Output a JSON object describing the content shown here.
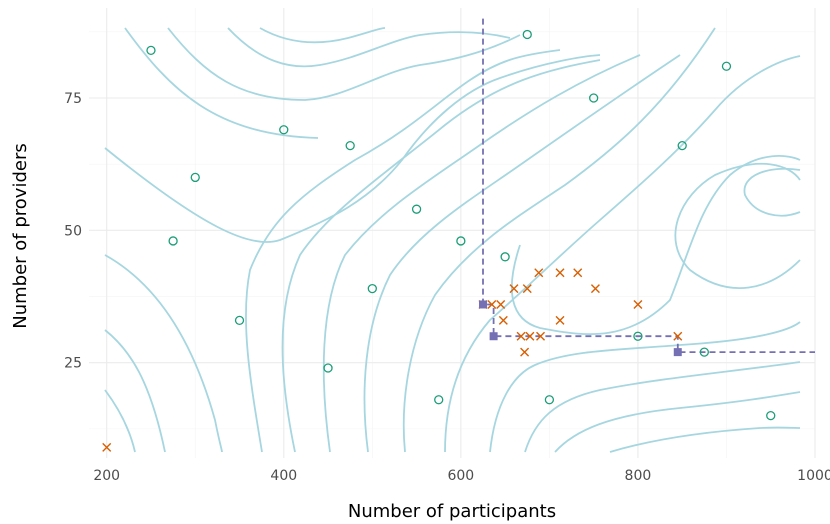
{
  "chart_data": {
    "type": "scatter",
    "title": "",
    "xlabel": "Number of participants",
    "ylabel": "Number of providers",
    "xlim": [
      180,
      1000
    ],
    "ylim": [
      7,
      92
    ],
    "x_ticks": [
      200,
      400,
      600,
      800,
      1000
    ],
    "y_ticks": [
      25,
      50,
      75
    ],
    "grid": true,
    "colors": {
      "circles": "#1b9e77",
      "crosses": "#d95f02",
      "frontier": "#7570b3",
      "contours": "#a6d6e0"
    },
    "series": [
      {
        "marker": "circle",
        "points": [
          [
            250,
            84
          ],
          [
            300,
            60
          ],
          [
            275,
            48
          ],
          [
            350,
            33
          ],
          [
            400,
            69
          ],
          [
            450,
            24
          ],
          [
            475,
            66
          ],
          [
            500,
            39
          ],
          [
            550,
            54
          ],
          [
            575,
            18
          ],
          [
            600,
            48
          ],
          [
            650,
            45
          ],
          [
            675,
            87
          ],
          [
            700,
            18
          ],
          [
            750,
            75
          ],
          [
            800,
            30
          ],
          [
            850,
            66
          ],
          [
            875,
            27
          ],
          [
            900,
            81
          ],
          [
            950,
            15
          ]
        ]
      },
      {
        "marker": "cross",
        "points": [
          [
            200,
            9
          ],
          [
            625,
            36
          ],
          [
            635,
            36
          ],
          [
            645,
            36
          ],
          [
            648,
            33
          ],
          [
            660,
            39
          ],
          [
            668,
            30
          ],
          [
            672,
            27
          ],
          [
            675,
            39
          ],
          [
            678,
            30
          ],
          [
            688,
            42
          ],
          [
            690,
            30
          ],
          [
            712,
            42
          ],
          [
            712,
            33
          ],
          [
            732,
            42
          ],
          [
            752,
            39
          ],
          [
            800,
            36
          ],
          [
            845,
            30
          ]
        ]
      },
      {
        "marker": "square",
        "points": [
          [
            625,
            36
          ],
          [
            637,
            30
          ],
          [
            845,
            27
          ]
        ]
      }
    ],
    "frontier_path": [
      [
        625,
        90
      ],
      [
        625,
        36
      ],
      [
        637,
        36
      ],
      [
        637,
        30
      ],
      [
        845,
        30
      ],
      [
        845,
        27
      ],
      [
        1000,
        27
      ]
    ]
  }
}
